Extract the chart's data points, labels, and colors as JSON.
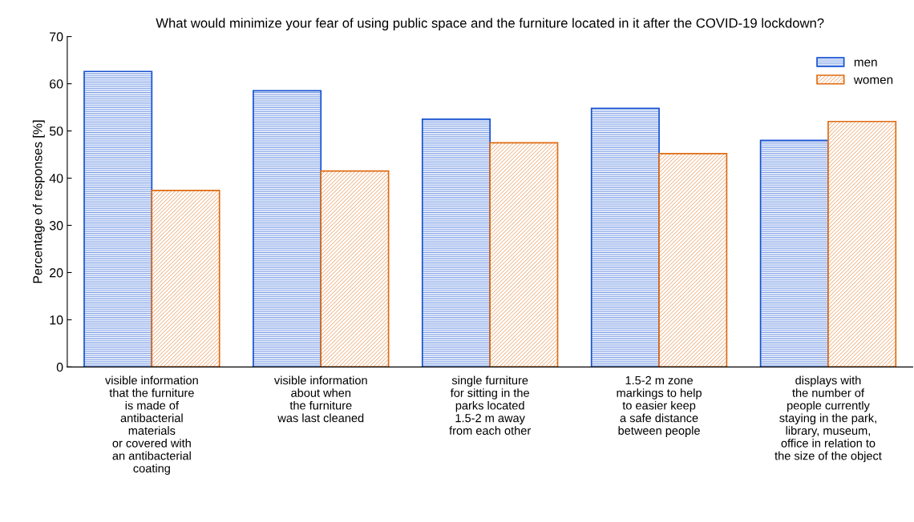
{
  "chart_data": {
    "type": "bar",
    "title": "What would minimize your fear of using public space and the furniture located in it after the COVID-19 lockdown?",
    "ylabel": "Percentage of responses [%]",
    "categories": [
      "visible information\nthat the furniture\nis made of\nantibacterial\nmaterials\nor covered with\nan antibacterial\ncoating",
      "visible information\nabout when\nthe furniture\nwas last cleaned",
      "single furniture\nfor sitting in the\nparks located\n1.5-2 m away\nfrom each other",
      "1.5-2 m zone\nmarkings to help\nto easier keep\na safe distance\nbetween people",
      "displays with\nthe number of\npeople currently\nstaying in the park,\nlibrary, museum,\noffice in relation to\nthe size of the object"
    ],
    "series": [
      {
        "name": "men",
        "color": "#1450d2",
        "values": [
          62.6,
          58.5,
          52.5,
          54.8,
          48.0
        ]
      },
      {
        "name": "women",
        "color": "#e06a10",
        "values": [
          37.4,
          41.5,
          47.5,
          45.2,
          52.0
        ]
      }
    ],
    "ylim": [
      0,
      70
    ],
    "yticks": [
      0,
      10,
      20,
      30,
      40,
      50,
      60,
      70
    ],
    "legend": "top right",
    "grid": false
  }
}
